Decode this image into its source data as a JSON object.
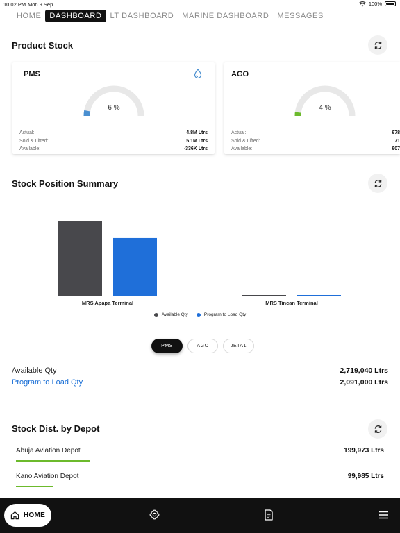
{
  "status_bar": {
    "time": "10:02 PM",
    "date": "Mon 9 Sep",
    "battery": "100%"
  },
  "nav_tabs": [
    {
      "label": "HOME",
      "active": false
    },
    {
      "label": "DASHBOARD",
      "active": true
    },
    {
      "label": "LT DASHBOARD",
      "active": false
    },
    {
      "label": "MARINE DASHBOARD",
      "active": false
    },
    {
      "label": "MESSAGES",
      "active": false
    }
  ],
  "product_stock": {
    "title": "Product Stock",
    "cards": [
      {
        "name": "PMS",
        "percent_label": "6 %",
        "percent": 6,
        "gauge_color": "#4a8fd0",
        "rows": [
          {
            "label": "Actual:",
            "value": "4.8M Ltrs"
          },
          {
            "label": "Sold & Lifted:",
            "value": "5.1M Ltrs"
          },
          {
            "label": "Available:",
            "value": "-336K Ltrs"
          }
        ]
      },
      {
        "name": "AGO",
        "percent_label": "4 %",
        "percent": 4,
        "gauge_color": "#6cba2c",
        "rows": [
          {
            "label": "Actual:",
            "value": "678"
          },
          {
            "label": "Sold & Lifted:",
            "value": "71"
          },
          {
            "label": "Available:",
            "value": "607"
          }
        ]
      }
    ]
  },
  "stock_position": {
    "title": "Stock Position Summary",
    "product_filters": [
      {
        "label": "PMS",
        "active": true
      },
      {
        "label": "AGO",
        "active": false
      },
      {
        "label": "JETA1",
        "active": false
      }
    ],
    "summary": {
      "available_label": "Available Qty",
      "available_value": "2,719,040 Ltrs",
      "program_label": "Program to Load Qty",
      "program_value": "2,091,000 Ltrs"
    }
  },
  "chart_data": {
    "type": "bar",
    "categories": [
      "MRS Apapa Terminal",
      "MRS Tincan Terminal"
    ],
    "series": [
      {
        "name": "Available Qty",
        "color": "#48484c",
        "values": [
          2719040,
          10000
        ]
      },
      {
        "name": "Program to Load Qty",
        "color": "#1f6fd9",
        "values": [
          2091000,
          10000
        ]
      }
    ],
    "ylim": [
      0,
      2719040
    ],
    "legend_position": "bottom",
    "grid": false
  },
  "depot": {
    "title": "Stock Dist. by Depot",
    "items": [
      {
        "name": "Abuja Aviation Depot",
        "value": "199,973 Ltrs",
        "fraction": 1.0
      },
      {
        "name": "Kano Aviation Depot",
        "value": "99,985 Ltrs",
        "fraction": 0.5
      }
    ]
  },
  "bottom_nav": {
    "home_label": "HOME",
    "icons": [
      "gear-icon",
      "document-icon",
      "menu-icon"
    ]
  }
}
